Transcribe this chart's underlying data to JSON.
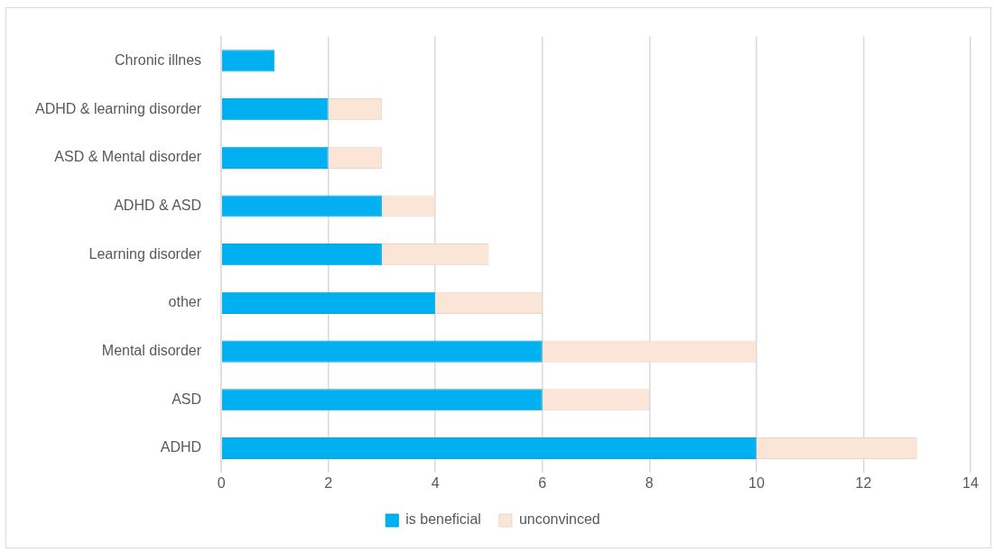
{
  "chart_data": {
    "type": "bar",
    "orientation": "horizontal",
    "stacked": true,
    "categories": [
      "Chronic illnes",
      "ADHD & learning disorder",
      "ASD & Mental disorder",
      "ADHD & ASD",
      "Learning disorder",
      "other",
      "Mental disorder",
      "ASD",
      "ADHD"
    ],
    "series": [
      {
        "name": "is beneficial",
        "color": "#00b0f0",
        "values": [
          1,
          2,
          2,
          3,
          3,
          4,
          6,
          6,
          10
        ]
      },
      {
        "name": "unconvinced",
        "color": "#fbe5d6",
        "values": [
          null,
          1,
          1,
          1,
          2,
          2,
          4,
          2,
          3
        ]
      }
    ],
    "xlim": [
      0,
      14
    ],
    "xticks": [
      0,
      2,
      4,
      6,
      8,
      10,
      12,
      14
    ],
    "grid": "x",
    "legend": "bottom"
  }
}
